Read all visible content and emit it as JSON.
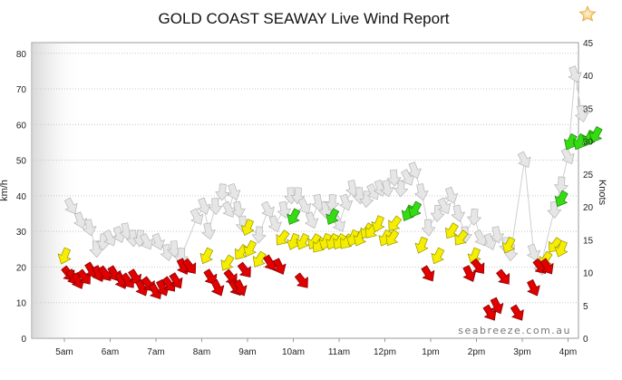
{
  "chart_data": {
    "type": "scatter",
    "title": "GOLD COAST SEAWAY Live Wind Report",
    "ylabel_left": "km/h",
    "ylabel_right": "Knots",
    "watermark": "seabreeze.com.au",
    "ylim": [
      0,
      83
    ],
    "ylim_right": [
      0,
      45
    ],
    "yticks_left": [
      "0",
      "10",
      "20",
      "30",
      "40",
      "50",
      "60",
      "70",
      "80"
    ],
    "yticks_right": [
      "0",
      "5",
      "10",
      "15",
      "20",
      "25",
      "30",
      "35",
      "40",
      "45"
    ],
    "xticks": [
      "5am",
      "6am",
      "7am",
      "8am",
      "9am",
      "10am",
      "11am",
      "12pm",
      "1pm",
      "2pm",
      "3pm",
      "4pm"
    ],
    "grid": true,
    "series": [
      {
        "color": "#e00000",
        "values": [
          {
            "x": 0.1,
            "y": 18
          },
          {
            "x": 0.2,
            "y": 17
          },
          {
            "x": 0.3,
            "y": 16
          },
          {
            "x": 0.45,
            "y": 17
          },
          {
            "x": 0.6,
            "y": 19
          },
          {
            "x": 0.75,
            "y": 18
          },
          {
            "x": 0.9,
            "y": 18
          },
          {
            "x": 1.1,
            "y": 18
          },
          {
            "x": 1.25,
            "y": 16
          },
          {
            "x": 1.4,
            "y": 16
          },
          {
            "x": 1.55,
            "y": 17
          },
          {
            "x": 1.7,
            "y": 14
          },
          {
            "x": 1.85,
            "y": 15
          },
          {
            "x": 2.0,
            "y": 13
          },
          {
            "x": 2.15,
            "y": 14
          },
          {
            "x": 2.3,
            "y": 15
          },
          {
            "x": 2.45,
            "y": 16
          },
          {
            "x": 2.6,
            "y": 20
          },
          {
            "x": 2.75,
            "y": 20
          },
          {
            "x": 3.2,
            "y": 17
          },
          {
            "x": 3.35,
            "y": 14
          },
          {
            "x": 3.65,
            "y": 17
          },
          {
            "x": 3.75,
            "y": 14
          },
          {
            "x": 3.85,
            "y": 14
          },
          {
            "x": 3.95,
            "y": 19
          },
          {
            "x": 4.5,
            "y": 21
          },
          {
            "x": 4.7,
            "y": 20
          },
          {
            "x": 5.2,
            "y": 16
          },
          {
            "x": 7.95,
            "y": 18
          },
          {
            "x": 8.85,
            "y": 18
          },
          {
            "x": 9.05,
            "y": 20
          },
          {
            "x": 9.3,
            "y": 7
          },
          {
            "x": 9.45,
            "y": 9
          },
          {
            "x": 9.6,
            "y": 17
          },
          {
            "x": 9.9,
            "y": 7
          },
          {
            "x": 10.25,
            "y": 14
          },
          {
            "x": 10.4,
            "y": 20
          },
          {
            "x": 10.55,
            "y": 20
          }
        ]
      },
      {
        "color": "#f5ee00",
        "values": [
          {
            "x": 0.0,
            "y": 23
          },
          {
            "x": 3.1,
            "y": 23
          },
          {
            "x": 3.55,
            "y": 21
          },
          {
            "x": 3.85,
            "y": 24
          },
          {
            "x": 4.0,
            "y": 31
          },
          {
            "x": 4.05,
            "y": 25
          },
          {
            "x": 4.25,
            "y": 22
          },
          {
            "x": 4.75,
            "y": 28
          },
          {
            "x": 5.0,
            "y": 27
          },
          {
            "x": 5.2,
            "y": 27
          },
          {
            "x": 5.45,
            "y": 27
          },
          {
            "x": 5.55,
            "y": 26
          },
          {
            "x": 5.7,
            "y": 27
          },
          {
            "x": 5.85,
            "y": 27
          },
          {
            "x": 6.0,
            "y": 27
          },
          {
            "x": 6.15,
            "y": 27
          },
          {
            "x": 6.3,
            "y": 28
          },
          {
            "x": 6.45,
            "y": 28
          },
          {
            "x": 6.6,
            "y": 30
          },
          {
            "x": 6.7,
            "y": 30
          },
          {
            "x": 6.85,
            "y": 32
          },
          {
            "x": 7.0,
            "y": 28
          },
          {
            "x": 7.15,
            "y": 28
          },
          {
            "x": 7.2,
            "y": 32
          },
          {
            "x": 7.8,
            "y": 26
          },
          {
            "x": 8.15,
            "y": 23
          },
          {
            "x": 8.45,
            "y": 30
          },
          {
            "x": 8.65,
            "y": 28
          },
          {
            "x": 8.95,
            "y": 23
          },
          {
            "x": 9.7,
            "y": 26
          },
          {
            "x": 10.5,
            "y": 22
          },
          {
            "x": 10.7,
            "y": 26
          },
          {
            "x": 10.85,
            "y": 25
          }
        ]
      },
      {
        "color": "#33dd11",
        "values": [
          {
            "x": 5.0,
            "y": 34
          },
          {
            "x": 5.85,
            "y": 34
          },
          {
            "x": 7.5,
            "y": 35
          },
          {
            "x": 7.65,
            "y": 36
          },
          {
            "x": 10.85,
            "y": 39
          },
          {
            "x": 11.05,
            "y": 55
          },
          {
            "x": 11.25,
            "y": 55
          },
          {
            "x": 11.45,
            "y": 56
          },
          {
            "x": 11.6,
            "y": 57
          }
        ]
      },
      {
        "color": "#e6e6e6",
        "values": [
          {
            "x": 0.15,
            "y": 37
          },
          {
            "x": 0.35,
            "y": 33
          },
          {
            "x": 0.55,
            "y": 31
          },
          {
            "x": 0.7,
            "y": 25
          },
          {
            "x": 0.85,
            "y": 27
          },
          {
            "x": 1.0,
            "y": 28
          },
          {
            "x": 1.2,
            "y": 29
          },
          {
            "x": 1.35,
            "y": 30
          },
          {
            "x": 1.5,
            "y": 28
          },
          {
            "x": 1.65,
            "y": 28
          },
          {
            "x": 1.8,
            "y": 27
          },
          {
            "x": 2.05,
            "y": 27
          },
          {
            "x": 2.25,
            "y": 24
          },
          {
            "x": 2.4,
            "y": 25
          },
          {
            "x": 2.55,
            "y": 23
          },
          {
            "x": 2.9,
            "y": 34
          },
          {
            "x": 3.05,
            "y": 37
          },
          {
            "x": 3.15,
            "y": 30
          },
          {
            "x": 3.3,
            "y": 37
          },
          {
            "x": 3.45,
            "y": 41
          },
          {
            "x": 3.6,
            "y": 36
          },
          {
            "x": 3.7,
            "y": 41
          },
          {
            "x": 3.8,
            "y": 36
          },
          {
            "x": 3.9,
            "y": 32
          },
          {
            "x": 4.25,
            "y": 29
          },
          {
            "x": 4.45,
            "y": 36
          },
          {
            "x": 4.6,
            "y": 32
          },
          {
            "x": 4.8,
            "y": 36
          },
          {
            "x": 4.95,
            "y": 40
          },
          {
            "x": 5.1,
            "y": 40
          },
          {
            "x": 5.25,
            "y": 37
          },
          {
            "x": 5.4,
            "y": 33
          },
          {
            "x": 5.55,
            "y": 38
          },
          {
            "x": 5.7,
            "y": 36
          },
          {
            "x": 5.85,
            "y": 38
          },
          {
            "x": 6.0,
            "y": 32
          },
          {
            "x": 6.15,
            "y": 38
          },
          {
            "x": 6.3,
            "y": 42
          },
          {
            "x": 6.45,
            "y": 40
          },
          {
            "x": 6.6,
            "y": 39
          },
          {
            "x": 6.75,
            "y": 41
          },
          {
            "x": 6.9,
            "y": 42
          },
          {
            "x": 7.05,
            "y": 42
          },
          {
            "x": 7.2,
            "y": 45
          },
          {
            "x": 7.35,
            "y": 42
          },
          {
            "x": 7.5,
            "y": 45
          },
          {
            "x": 7.65,
            "y": 47
          },
          {
            "x": 7.8,
            "y": 41
          },
          {
            "x": 7.95,
            "y": 31
          },
          {
            "x": 8.15,
            "y": 35
          },
          {
            "x": 8.3,
            "y": 37
          },
          {
            "x": 8.45,
            "y": 40
          },
          {
            "x": 8.6,
            "y": 35
          },
          {
            "x": 8.75,
            "y": 29
          },
          {
            "x": 8.95,
            "y": 34
          },
          {
            "x": 9.1,
            "y": 28
          },
          {
            "x": 9.3,
            "y": 27
          },
          {
            "x": 9.45,
            "y": 29
          },
          {
            "x": 9.65,
            "y": 26
          },
          {
            "x": 9.75,
            "y": 24
          },
          {
            "x": 10.05,
            "y": 50
          },
          {
            "x": 10.25,
            "y": 24
          },
          {
            "x": 10.4,
            "y": 20
          },
          {
            "x": 10.7,
            "y": 36
          },
          {
            "x": 10.85,
            "y": 43
          },
          {
            "x": 11.0,
            "y": 51
          },
          {
            "x": 11.15,
            "y": 74
          },
          {
            "x": 11.3,
            "y": 63
          }
        ]
      }
    ]
  }
}
